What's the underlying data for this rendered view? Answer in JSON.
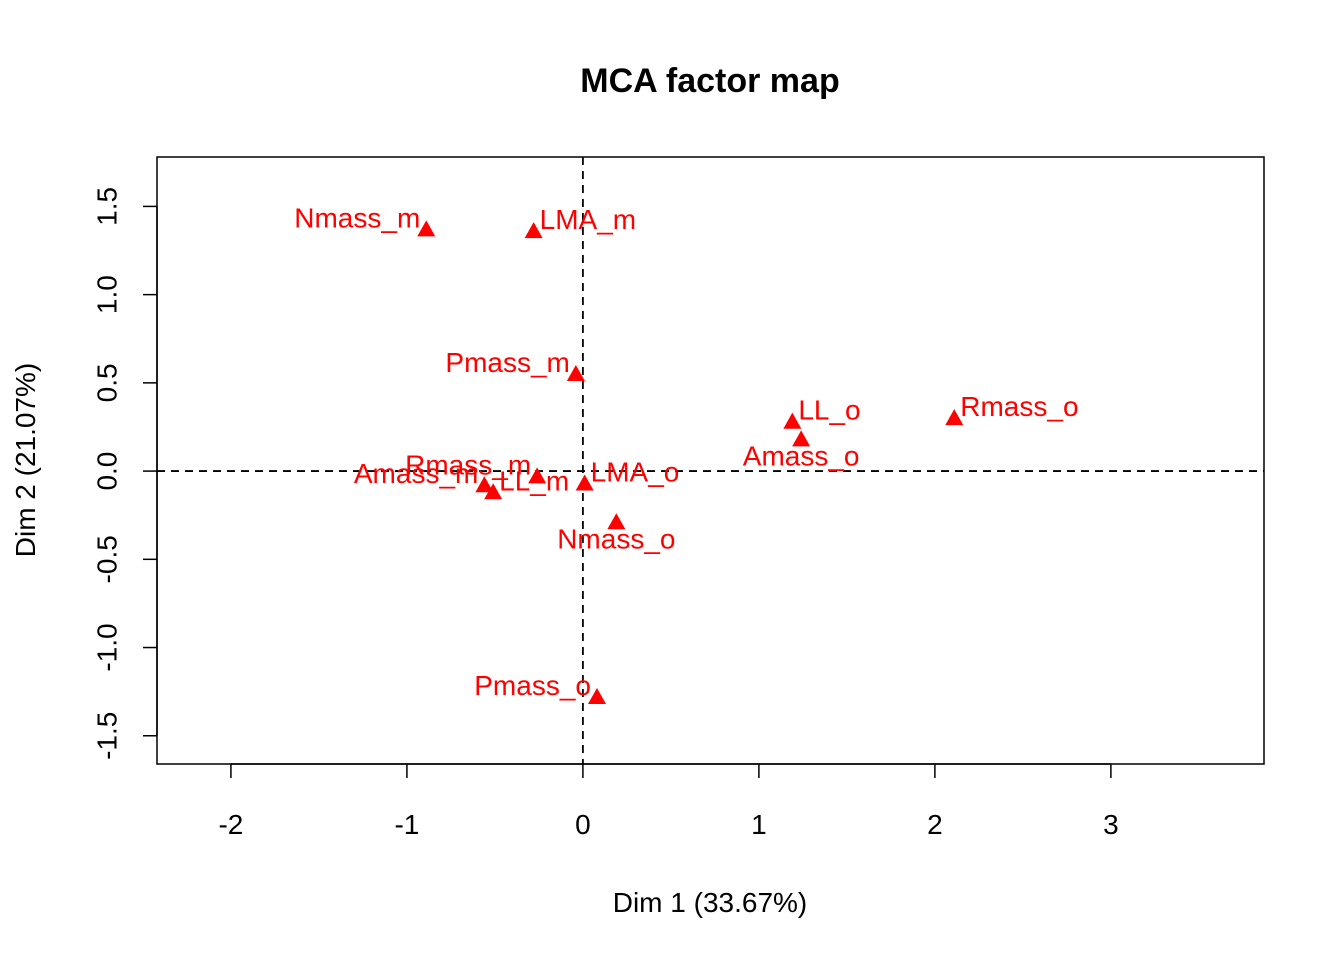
{
  "chart_data": {
    "type": "scatter",
    "title": "MCA factor map",
    "xlabel": "Dim 1 (33.67%)",
    "ylabel": "Dim 2 (21.07%)",
    "xlim": [
      -2.42,
      3.87
    ],
    "ylim": [
      -1.66,
      1.78
    ],
    "xticks": [
      {
        "value": -2,
        "label": "-2"
      },
      {
        "value": -1,
        "label": "-1"
      },
      {
        "value": 0,
        "label": "0"
      },
      {
        "value": 1,
        "label": "1"
      },
      {
        "value": 2,
        "label": "2"
      },
      {
        "value": 3,
        "label": "3"
      }
    ],
    "yticks": [
      {
        "value": -1.5,
        "label": "-1.5"
      },
      {
        "value": -1.0,
        "label": "-1.0"
      },
      {
        "value": -0.5,
        "label": "-0.5"
      },
      {
        "value": 0.0,
        "label": "0.0"
      },
      {
        "value": 0.5,
        "label": "0.5"
      },
      {
        "value": 1.0,
        "label": "1.0"
      },
      {
        "value": 1.5,
        "label": "1.5"
      }
    ],
    "reference_lines": {
      "x": 0,
      "y": 0,
      "style": "dashed"
    },
    "marker": "triangle",
    "color": "#ff0000",
    "points": [
      {
        "label": "Nmass_m",
        "x": -0.89,
        "y": 1.37,
        "label_pos": "left"
      },
      {
        "label": "LMA_m",
        "x": -0.28,
        "y": 1.36,
        "label_pos": "right"
      },
      {
        "label": "Pmass_m",
        "x": -0.04,
        "y": 0.55,
        "label_pos": "left"
      },
      {
        "label": "LL_o",
        "x": 1.19,
        "y": 0.28,
        "label_pos": "right"
      },
      {
        "label": "Rmass_o",
        "x": 2.11,
        "y": 0.3,
        "label_pos": "right"
      },
      {
        "label": "Amass_o",
        "x": 1.24,
        "y": 0.18,
        "label_pos": "below"
      },
      {
        "label": "Rmass_m",
        "x": -0.26,
        "y": -0.03,
        "label_pos": "left"
      },
      {
        "label": "LMA_o",
        "x": 0.01,
        "y": -0.07,
        "label_pos": "right"
      },
      {
        "label": "Amass_m",
        "x": -0.56,
        "y": -0.08,
        "label_pos": "left"
      },
      {
        "label": "LL_m",
        "x": -0.51,
        "y": -0.12,
        "label_pos": "right"
      },
      {
        "label": "Nmass_o",
        "x": 0.19,
        "y": -0.29,
        "label_pos": "below"
      },
      {
        "label": "Pmass_o",
        "x": 0.08,
        "y": -1.28,
        "label_pos": "left"
      }
    ]
  }
}
